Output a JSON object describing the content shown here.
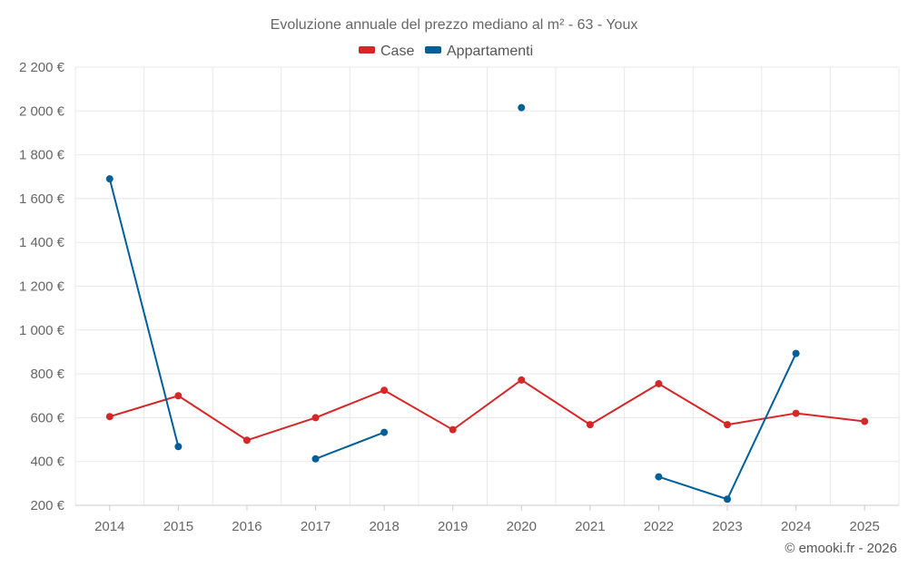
{
  "chart_data": {
    "type": "line",
    "title": "Evoluzione annuale del prezzo mediano al m² - 63 - Youx",
    "xlabel": "",
    "ylabel": "",
    "categories": [
      "2014",
      "2015",
      "2016",
      "2017",
      "2018",
      "2019",
      "2020",
      "2021",
      "2022",
      "2023",
      "2024",
      "2025"
    ],
    "ylim": [
      200,
      2200
    ],
    "yticks": [
      200,
      400,
      600,
      800,
      1000,
      1200,
      1400,
      1600,
      1800,
      2000,
      2200
    ],
    "ytick_labels": [
      "200 €",
      "400 €",
      "600 €",
      "800 €",
      "1 000 €",
      "1 200 €",
      "1 400 €",
      "1 600 €",
      "1 800 €",
      "2 000 €",
      "2 200 €"
    ],
    "grid": true,
    "legend_position": "top-center",
    "series": [
      {
        "name": "Case",
        "color": "#d62728",
        "values": [
          605,
          700,
          497,
          600,
          725,
          545,
          772,
          568,
          755,
          568,
          620,
          583
        ]
      },
      {
        "name": "Appartamenti",
        "color": "#005f99",
        "values": [
          1690,
          468,
          null,
          412,
          533,
          null,
          2015,
          null,
          330,
          228,
          893,
          null
        ]
      }
    ],
    "credit": "© emooki.fr - 2026"
  }
}
